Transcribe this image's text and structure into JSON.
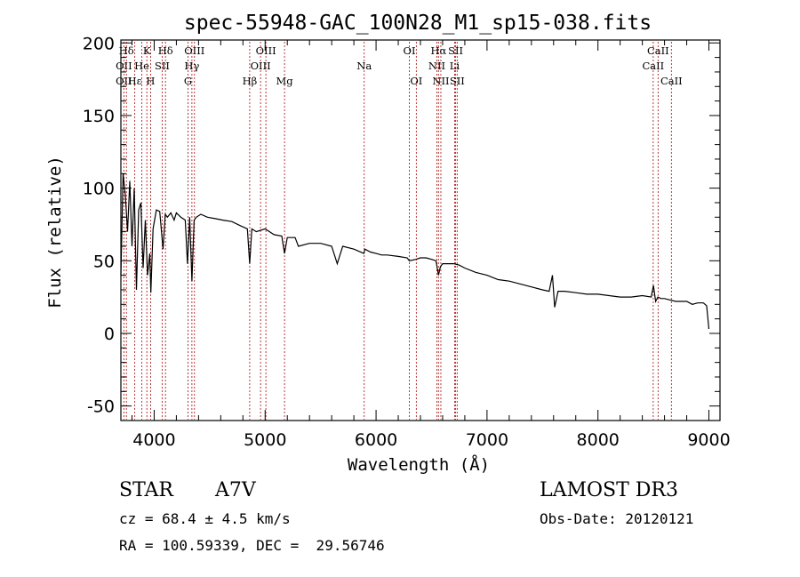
{
  "chart_data": {
    "type": "line",
    "title": "spec-55948-GAC_100N28_M1_sp15-038.fits",
    "xlabel": "Wavelength (Å)",
    "ylabel": "Flux (relative)",
    "xlim": [
      3700,
      9100
    ],
    "ylim": [
      -60,
      202
    ],
    "x_ticks": [
      4000,
      5000,
      6000,
      7000,
      8000,
      9000
    ],
    "y_ticks": [
      -50,
      0,
      50,
      100,
      150,
      200
    ],
    "grid": false,
    "series": [
      {
        "name": "flux",
        "x": [
          3700,
          3720,
          3740,
          3760,
          3780,
          3800,
          3820,
          3840,
          3860,
          3880,
          3900,
          3920,
          3940,
          3960,
          3970,
          3990,
          4020,
          4050,
          4080,
          4100,
          4120,
          4150,
          4180,
          4200,
          4240,
          4280,
          4300,
          4320,
          4340,
          4360,
          4380,
          4420,
          4480,
          4550,
          4620,
          4700,
          4780,
          4840,
          4861,
          4880,
          4920,
          5000,
          5080,
          5150,
          5175,
          5200,
          5270,
          5300,
          5400,
          5500,
          5600,
          5650,
          5700,
          5800,
          5890,
          5900,
          5950,
          6000,
          6050,
          6100,
          6200,
          6280,
          6300,
          6360,
          6400,
          6450,
          6500,
          6540,
          6563,
          6580,
          6600,
          6650,
          6700,
          6750,
          6800,
          6900,
          7000,
          7100,
          7200,
          7300,
          7400,
          7500,
          7560,
          7590,
          7610,
          7640,
          7700,
          7800,
          7900,
          8000,
          8100,
          8200,
          8300,
          8400,
          8480,
          8500,
          8520,
          8540,
          8570,
          8600,
          8650,
          8700,
          8750,
          8800,
          8850,
          8900,
          8950,
          8980,
          9000
        ],
        "y": [
          40,
          110,
          95,
          70,
          105,
          60,
          100,
          30,
          85,
          90,
          45,
          78,
          40,
          55,
          28,
          72,
          85,
          84,
          58,
          82,
          80,
          83,
          78,
          83,
          80,
          78,
          48,
          80,
          36,
          78,
          80,
          82,
          80,
          79,
          78,
          77,
          74,
          72,
          48,
          72,
          70,
          72,
          68,
          67,
          55,
          66,
          66,
          60,
          62,
          62,
          60,
          48,
          60,
          58,
          55,
          58,
          56,
          55,
          54,
          54,
          53,
          52,
          50,
          51,
          52,
          52,
          51,
          50,
          40,
          46,
          48,
          48,
          48,
          47,
          45,
          42,
          40,
          37,
          36,
          34,
          32,
          30,
          29,
          40,
          18,
          29,
          29,
          28,
          27,
          27,
          26,
          25,
          25,
          26,
          25,
          33,
          22,
          25,
          24,
          24,
          23,
          22,
          22,
          22,
          20,
          21,
          21,
          19,
          3
        ]
      }
    ],
    "line_markers": [
      {
        "label": "Hδ",
        "wavelength": 3750,
        "row": 0
      },
      {
        "label": "K",
        "wavelength": 3934,
        "row": 0
      },
      {
        "label": "Hδ",
        "wavelength": 4102,
        "row": 0
      },
      {
        "label": "OIII",
        "wavelength": 4363,
        "row": 0
      },
      {
        "label": "OIII",
        "wavelength": 5007,
        "row": 0
      },
      {
        "label": "OI",
        "wavelength": 6300,
        "row": 0
      },
      {
        "label": "Hα",
        "wavelength": 6563,
        "row": 0
      },
      {
        "label": "SII",
        "wavelength": 6717,
        "row": 0
      },
      {
        "label": "CaII",
        "wavelength": 8542,
        "row": 0
      },
      {
        "label": "OII",
        "wavelength": 3727,
        "row": 1
      },
      {
        "label": "He",
        "wavelength": 3889,
        "row": 1
      },
      {
        "label": "SII",
        "wavelength": 4072,
        "row": 1
      },
      {
        "label": "Hγ",
        "wavelength": 4340,
        "row": 1
      },
      {
        "label": "OIII",
        "wavelength": 4959,
        "row": 1
      },
      {
        "label": "Na",
        "wavelength": 5893,
        "row": 1
      },
      {
        "label": "NII",
        "wavelength": 6548,
        "row": 1
      },
      {
        "label": "Li",
        "wavelength": 6708,
        "row": 1
      },
      {
        "label": "CaII",
        "wavelength": 8498,
        "row": 1
      },
      {
        "label": "OII",
        "wavelength": 3727,
        "row": 2
      },
      {
        "label": "Hε",
        "wavelength": 3825,
        "row": 2
      },
      {
        "label": "H",
        "wavelength": 3968,
        "row": 2
      },
      {
        "label": "G",
        "wavelength": 4305,
        "row": 2
      },
      {
        "label": "Hβ",
        "wavelength": 4861,
        "row": 2
      },
      {
        "label": "Mg",
        "wavelength": 5175,
        "row": 2
      },
      {
        "label": "OI",
        "wavelength": 6363,
        "row": 2
      },
      {
        "label": "NII",
        "wavelength": 6584,
        "row": 2
      },
      {
        "label": "SII",
        "wavelength": 6731,
        "row": 2
      },
      {
        "label": "CaII",
        "wavelength": 8662,
        "row": 2
      }
    ],
    "marker_color": "#b22222"
  },
  "info": {
    "object_class": "STAR",
    "subclass": "A7V",
    "survey": "LAMOST DR3",
    "cz_line": "cz = 68.4 ± 4.5 km/s",
    "obs_date_line": "Obs-Date: 20120121",
    "coords_line": "RA = 100.59339, DEC =  29.56746"
  }
}
